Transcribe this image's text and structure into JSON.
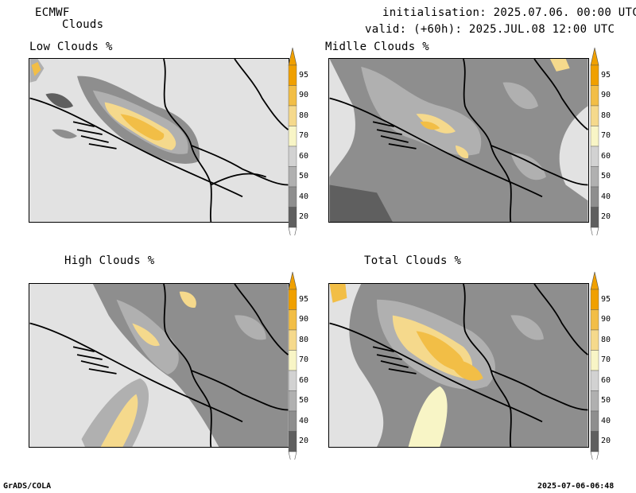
{
  "header": {
    "model": "ECMWF",
    "product": "Clouds",
    "init_line": "initialisation: 2025.07.06. 00:00 UTC",
    "valid_line": "valid: (+60h): 2025.JUL.08 12:00 UTC"
  },
  "panels": [
    {
      "title": "Low Clouds %"
    },
    {
      "title": "Midlle Clouds %"
    },
    {
      "title": "High Clouds %"
    },
    {
      "title": "Total Clouds %"
    }
  ],
  "colorbar": {
    "labels": [
      "95",
      "90",
      "80",
      "70",
      "60",
      "50",
      "40",
      "20"
    ],
    "colors": [
      "#f0a000",
      "#f2be46",
      "#f5d98c",
      "#f8f5c6",
      "#d2d2d2",
      "#b0b0b0",
      "#8e8e8e",
      "#5f5f5f"
    ]
  },
  "footer": {
    "left": "GrADS/COLA",
    "right": "2025-07-06-06:48"
  }
}
